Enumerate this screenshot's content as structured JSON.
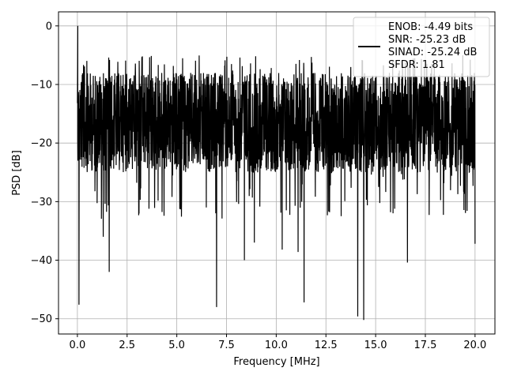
{
  "chart_data": {
    "type": "line",
    "title": "",
    "xlabel": "Frequency [MHz]",
    "ylabel": "PSD [dB]",
    "xlim": [
      -0.95,
      21.0
    ],
    "ylim": [
      -52.6,
      2.4
    ],
    "xticks": [
      0.0,
      2.5,
      5.0,
      7.5,
      10.0,
      12.5,
      15.0,
      17.5,
      20.0
    ],
    "xtick_labels": [
      "0.0",
      "2.5",
      "5.0",
      "7.5",
      "10.0",
      "12.5",
      "15.0",
      "17.5",
      "20.0"
    ],
    "yticks": [
      0,
      -10,
      -20,
      -30,
      -40,
      -50
    ],
    "ytick_labels": [
      "0",
      "−10",
      "−20",
      "−30",
      "−40",
      "−50"
    ],
    "grid": true,
    "legend": {
      "placement": "top-right",
      "lines": [
        "ENOB: -4.49 bits",
        "SNR: -25.23 dB",
        "SINAD: -25.24 dB",
        "SFDR: 1.81"
      ]
    },
    "series": [
      {
        "color": "#000000",
        "description_of_shape": "dense noise-like PSD between roughly -5 and -25 dB with deep dips",
        "x_range": [
          0,
          20
        ],
        "peak": {
          "x": 0.02,
          "y": 0.0
        },
        "notable_dips": [
          {
            "x": 0.08,
            "y": -47.6
          },
          {
            "x": 1.6,
            "y": -42.0
          },
          {
            "x": 7.0,
            "y": -48.0
          },
          {
            "x": 8.4,
            "y": -40.0
          },
          {
            "x": 11.4,
            "y": -47.2
          },
          {
            "x": 14.1,
            "y": -49.6
          },
          {
            "x": 14.4,
            "y": -50.2
          },
          {
            "x": 16.6,
            "y": -40.4
          },
          {
            "x": 10.3,
            "y": -38.2
          },
          {
            "x": 11.1,
            "y": -38.6
          },
          {
            "x": 8.9,
            "y": -37.0
          },
          {
            "x": 1.3,
            "y": -36.0
          },
          {
            "x": 20.0,
            "y": -37.2
          }
        ]
      }
    ]
  }
}
